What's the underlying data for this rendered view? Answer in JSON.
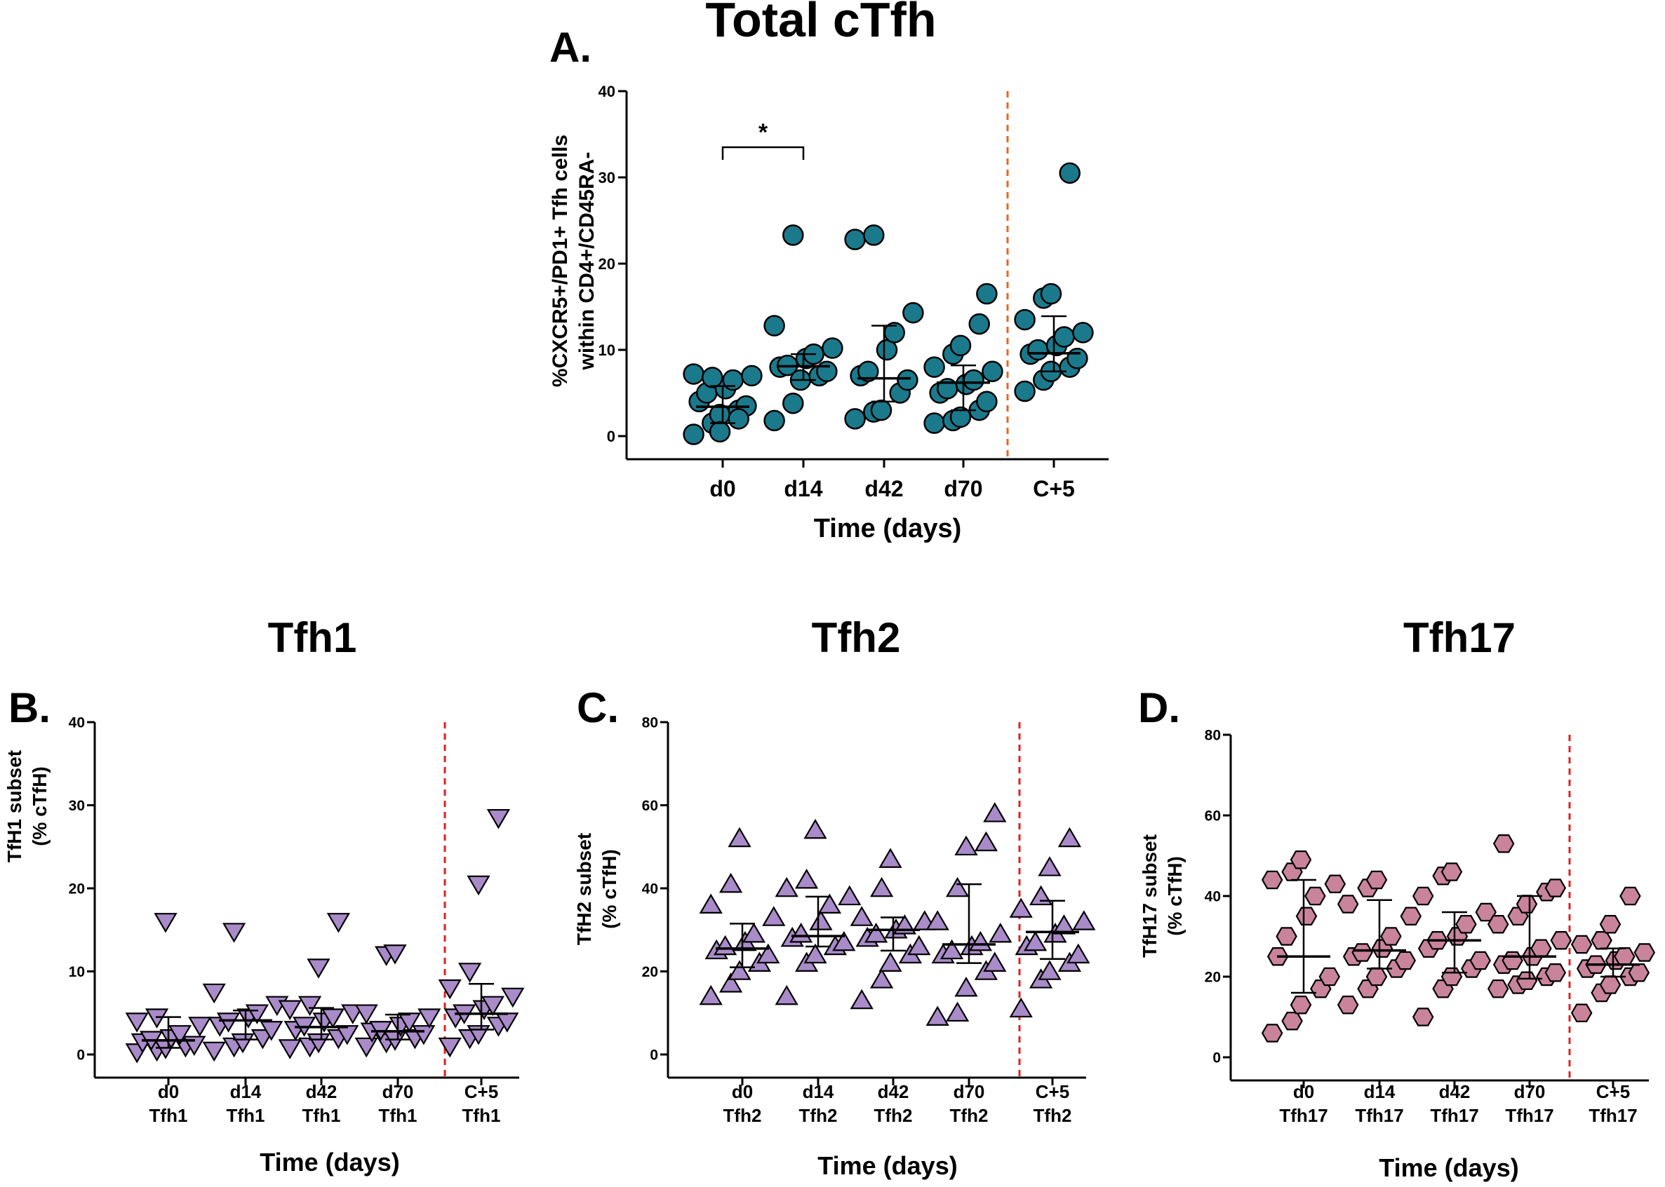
{
  "chart_data": [
    {
      "id": "A",
      "type": "scatter",
      "panel_label": "A.",
      "title": "Total cTfh",
      "ylabel_lines": [
        "%CXCR5+/PD1+ Tfh cells",
        "within CD4+/CD45RA-"
      ],
      "xlabel": "Time (days)",
      "ylim": [
        0,
        40
      ],
      "yticks": [
        0,
        10,
        20,
        30,
        40
      ],
      "categories": [
        [
          "d0"
        ],
        [
          "d14"
        ],
        [
          "d42"
        ],
        [
          "d70"
        ],
        [
          "C+5"
        ]
      ],
      "marker": "circle",
      "marker_color": "#1a7a8c",
      "separator_color": "#e8641e",
      "significance": [
        {
          "from": 0,
          "to": 1,
          "label": "*",
          "y": 33.5
        }
      ],
      "series": [
        {
          "values": [
            0.2,
            1.5,
            2.5,
            3.0,
            3.5,
            4.0,
            5.0,
            5.5,
            6.5,
            7.0,
            7.2,
            6.8,
            0.5,
            2.0
          ],
          "median": 3.4,
          "iqr": [
            1.5,
            5.8
          ]
        },
        {
          "values": [
            1.8,
            3.8,
            6.5,
            7.0,
            7.5,
            8.0,
            8.2,
            9.0,
            9.5,
            10.2,
            12.8,
            23.3
          ],
          "median": 8.1,
          "iqr": [
            6.5,
            9.5
          ]
        },
        {
          "values": [
            2.0,
            2.8,
            3.0,
            5.0,
            6.5,
            7.0,
            7.5,
            10.0,
            12.0,
            14.3,
            22.8,
            23.3
          ],
          "median": 6.7,
          "iqr": [
            4.0,
            12.8
          ]
        },
        {
          "values": [
            1.5,
            1.8,
            2.2,
            3.0,
            4.0,
            5.0,
            5.5,
            6.0,
            6.5,
            7.5,
            8.0,
            9.5,
            10.5,
            13.0,
            16.5
          ],
          "median": 6.2,
          "iqr": [
            3.0,
            8.2
          ]
        },
        {
          "values": [
            5.2,
            6.5,
            7.5,
            8.0,
            9.0,
            9.5,
            10.0,
            10.5,
            11.5,
            12.0,
            13.5,
            16.0,
            16.5,
            30.5
          ],
          "median": 9.6,
          "iqr": [
            7.5,
            13.9
          ]
        }
      ]
    },
    {
      "id": "B",
      "type": "scatter",
      "panel_label": "B.",
      "title": "Tfh1",
      "ylabel_lines": [
        "TfH1 subset",
        "(% cTfH)"
      ],
      "xlabel": "Time (days)",
      "ylim": [
        0,
        40
      ],
      "yticks": [
        0,
        10,
        20,
        30,
        40
      ],
      "categories": [
        [
          "d0",
          "Tfh1"
        ],
        [
          "d14",
          "Tfh1"
        ],
        [
          "d42",
          "Tfh1"
        ],
        [
          "d70",
          "Tfh1"
        ],
        [
          "C+5",
          "Tfh1"
        ]
      ],
      "marker": "triangle-down",
      "marker_color": "#a98bc9",
      "separator_color": "#e02020",
      "significance": [],
      "series": [
        {
          "values": [
            0.3,
            0.5,
            0.8,
            1.0,
            1.2,
            1.5,
            1.8,
            2.0,
            2.5,
            3.5,
            4.0,
            4.5,
            16.0
          ],
          "median": 1.7,
          "iqr": [
            0.8,
            4.5
          ]
        },
        {
          "values": [
            0.5,
            1.0,
            1.5,
            2.0,
            3.0,
            3.5,
            4.0,
            4.5,
            5.0,
            6.0,
            7.5,
            14.8
          ],
          "median": 4.1,
          "iqr": [
            1.8,
            5.3
          ]
        },
        {
          "values": [
            0.8,
            1.0,
            1.5,
            2.0,
            2.5,
            3.0,
            3.5,
            4.0,
            4.5,
            5.0,
            5.5,
            6.0,
            10.5,
            16.0
          ],
          "median": 3.3,
          "iqr": [
            1.8,
            5.6
          ]
        },
        {
          "values": [
            1.0,
            1.5,
            1.8,
            2.0,
            2.5,
            2.8,
            3.0,
            3.5,
            4.0,
            4.5,
            5.0,
            12.0,
            12.2
          ],
          "median": 2.8,
          "iqr": [
            1.8,
            4.8
          ]
        },
        {
          "values": [
            1.0,
            2.0,
            2.5,
            3.5,
            4.0,
            4.5,
            5.0,
            5.5,
            6.0,
            7.0,
            8.0,
            10.0,
            20.5,
            28.5
          ],
          "median": 4.9,
          "iqr": [
            3.0,
            8.5
          ]
        }
      ]
    },
    {
      "id": "C",
      "type": "scatter",
      "panel_label": "C.",
      "title": "Tfh2",
      "ylabel_lines": [
        "TfH2 subset",
        "(% cTfH)"
      ],
      "xlabel": "Time (days)",
      "ylim": [
        0,
        80
      ],
      "yticks": [
        0,
        20,
        40,
        60,
        80
      ],
      "categories": [
        [
          "d0",
          "Tfh2"
        ],
        [
          "d14",
          "Tfh2"
        ],
        [
          "d42",
          "Tfh2"
        ],
        [
          "d70",
          "Tfh2"
        ],
        [
          "C+5",
          "Tfh2"
        ]
      ],
      "marker": "triangle-up",
      "marker_color": "#a98bc9",
      "separator_color": "#e02020",
      "significance": [],
      "series": [
        {
          "values": [
            14.0,
            17.0,
            20.0,
            22.0,
            24.0,
            25.0,
            26.0,
            27.0,
            29.0,
            33.0,
            36.0,
            41.0,
            52.0
          ],
          "median": 25.5,
          "iqr": [
            21.0,
            31.5
          ]
        },
        {
          "values": [
            14.0,
            22.0,
            24.0,
            26.0,
            27.0,
            28.0,
            29.0,
            32.0,
            36.0,
            38.0,
            40.0,
            42.0,
            54.0
          ],
          "median": 28.5,
          "iqr": [
            26.0,
            38.0
          ]
        },
        {
          "values": [
            13.0,
            18.0,
            22.0,
            24.0,
            26.0,
            28.0,
            29.0,
            30.0,
            31.0,
            32.0,
            33.0,
            40.0,
            47.0
          ],
          "median": 30.0,
          "iqr": [
            25.0,
            33.0
          ]
        },
        {
          "values": [
            9.0,
            10.0,
            16.0,
            20.0,
            22.0,
            24.0,
            25.0,
            26.0,
            27.0,
            29.0,
            32.0,
            40.0,
            50.0,
            51.0,
            58.0
          ],
          "median": 26.5,
          "iqr": [
            22.0,
            41.0
          ]
        },
        {
          "values": [
            11.0,
            18.0,
            20.0,
            22.0,
            24.0,
            26.0,
            27.0,
            29.0,
            31.0,
            32.0,
            35.0,
            38.0,
            45.0,
            52.0
          ],
          "median": 29.5,
          "iqr": [
            23.0,
            37.0
          ]
        }
      ]
    },
    {
      "id": "D",
      "type": "scatter",
      "panel_label": "D.",
      "title": "Tfh17",
      "ylabel_lines": [
        "TfH17 subset",
        "(% cTfH)"
      ],
      "xlabel": "Time (days)",
      "ylim": [
        0,
        80
      ],
      "yticks": [
        0,
        20,
        40,
        60,
        80
      ],
      "categories": [
        [
          "d0",
          "Tfh17"
        ],
        [
          "d14",
          "Tfh17"
        ],
        [
          "d42",
          "Tfh17"
        ],
        [
          "d70",
          "Tfh17"
        ],
        [
          "C+5",
          "Tfh17"
        ]
      ],
      "marker": "hexagon",
      "marker_color": "#c9849c",
      "separator_color": "#e02020",
      "significance": [],
      "series": [
        {
          "values": [
            6.0,
            9.0,
            13.0,
            17.0,
            20.0,
            25.0,
            30.0,
            35.0,
            40.0,
            43.0,
            44.0,
            46.0,
            49.0
          ],
          "median": 25.0,
          "iqr": [
            16.0,
            44.0
          ]
        },
        {
          "values": [
            13.0,
            17.0,
            20.0,
            22.0,
            24.0,
            25.0,
            26.0,
            27.0,
            30.0,
            35.0,
            38.0,
            42.0,
            44.0
          ],
          "median": 26.5,
          "iqr": [
            22.0,
            39.0
          ]
        },
        {
          "values": [
            10.0,
            17.0,
            20.0,
            22.0,
            24.0,
            27.0,
            29.0,
            30.0,
            33.0,
            36.0,
            40.0,
            45.0,
            46.0
          ],
          "median": 29.0,
          "iqr": [
            21.0,
            36.0
          ]
        },
        {
          "values": [
            17.0,
            18.0,
            19.0,
            20.0,
            21.0,
            23.0,
            24.0,
            25.0,
            27.0,
            29.0,
            33.0,
            35.0,
            38.0,
            41.0,
            42.0,
            53.0
          ],
          "median": 25.0,
          "iqr": [
            19.5,
            40.0
          ]
        },
        {
          "values": [
            11.0,
            16.0,
            18.0,
            20.0,
            21.0,
            22.0,
            23.0,
            24.0,
            25.0,
            26.0,
            28.0,
            29.0,
            33.0,
            40.0
          ],
          "median": 23.0,
          "iqr": [
            20.0,
            27.0
          ]
        }
      ]
    }
  ]
}
